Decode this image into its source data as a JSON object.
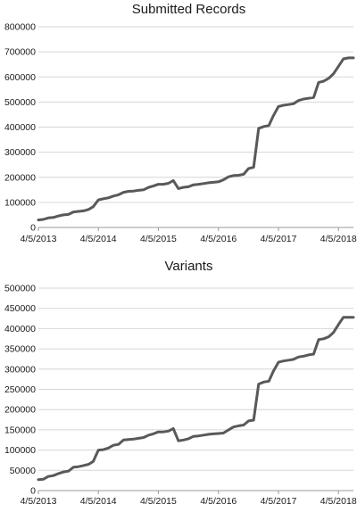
{
  "chart_data": [
    {
      "type": "line",
      "title": "Submitted Records",
      "xlabel": "",
      "ylabel": "",
      "x_ticks": [
        "4/5/2013",
        "4/5/2014",
        "4/5/2015",
        "4/5/2016",
        "4/5/2017",
        "4/5/2018"
      ],
      "x_range": [
        "2013-04-05",
        "2018-07-05"
      ],
      "ylim": [
        0,
        800000
      ],
      "y_ticks": [
        0,
        100000,
        200000,
        300000,
        400000,
        500000,
        600000,
        700000,
        800000
      ],
      "grid": "horizontal",
      "line_color": "#595959",
      "series": [
        {
          "x": [
            "2013-04-05",
            "2013-05-05",
            "2013-06-05",
            "2013-07-05",
            "2013-08-05",
            "2013-09-05",
            "2013-10-05",
            "2013-11-05",
            "2013-12-05",
            "2014-01-05",
            "2014-02-05",
            "2014-03-05",
            "2014-04-05",
            "2014-05-05",
            "2014-06-05",
            "2014-07-05",
            "2014-08-05",
            "2014-09-05",
            "2014-10-05",
            "2014-11-05",
            "2014-12-05",
            "2015-01-05",
            "2015-02-05",
            "2015-03-05",
            "2015-04-05",
            "2015-05-05",
            "2015-06-05",
            "2015-07-05",
            "2015-08-05",
            "2015-09-05",
            "2015-10-05",
            "2015-11-05",
            "2015-12-05",
            "2016-01-05",
            "2016-02-05",
            "2016-03-05",
            "2016-04-05",
            "2016-05-05",
            "2016-06-05",
            "2016-07-05",
            "2016-08-05",
            "2016-09-05",
            "2016-10-05",
            "2016-11-05",
            "2016-12-05",
            "2017-01-05",
            "2017-02-05",
            "2017-03-05",
            "2017-04-05",
            "2017-05-05",
            "2017-06-05",
            "2017-07-05",
            "2017-08-05",
            "2017-09-05",
            "2017-10-05",
            "2017-11-05",
            "2017-12-05",
            "2018-01-05",
            "2018-02-05",
            "2018-03-05",
            "2018-04-05",
            "2018-05-05",
            "2018-06-05",
            "2018-07-05"
          ],
          "values": [
            30000,
            32000,
            38000,
            40000,
            46000,
            50000,
            52000,
            62000,
            64000,
            66000,
            72000,
            83000,
            110000,
            114000,
            118000,
            125000,
            130000,
            140000,
            144000,
            145000,
            148000,
            150000,
            160000,
            165000,
            172000,
            172000,
            176000,
            187000,
            155000,
            160000,
            162000,
            170000,
            172000,
            175000,
            178000,
            180000,
            182000,
            190000,
            202000,
            207000,
            208000,
            212000,
            235000,
            240000,
            395000,
            402000,
            406000,
            445000,
            482000,
            487000,
            490000,
            493000,
            506000,
            512000,
            515000,
            518000,
            578000,
            583000,
            595000,
            612000,
            642000,
            672000,
            676000,
            676000
          ]
        }
      ]
    },
    {
      "type": "line",
      "title": "Variants",
      "xlabel": "",
      "ylabel": "",
      "x_ticks": [
        "4/5/2013",
        "4/5/2014",
        "4/5/2015",
        "4/5/2016",
        "4/5/2017",
        "4/5/2018"
      ],
      "x_range": [
        "2013-04-05",
        "2018-07-05"
      ],
      "ylim": [
        0,
        500000
      ],
      "y_ticks": [
        0,
        50000,
        100000,
        150000,
        200000,
        250000,
        300000,
        350000,
        400000,
        450000,
        500000
      ],
      "grid": "horizontal",
      "line_color": "#595959",
      "series": [
        {
          "x": [
            "2013-04-05",
            "2013-05-05",
            "2013-06-05",
            "2013-07-05",
            "2013-08-05",
            "2013-09-05",
            "2013-10-05",
            "2013-11-05",
            "2013-12-05",
            "2014-01-05",
            "2014-02-05",
            "2014-03-05",
            "2014-04-05",
            "2014-05-05",
            "2014-06-05",
            "2014-07-05",
            "2014-08-05",
            "2014-09-05",
            "2014-10-05",
            "2014-11-05",
            "2014-12-05",
            "2015-01-05",
            "2015-02-05",
            "2015-03-05",
            "2015-04-05",
            "2015-05-05",
            "2015-06-05",
            "2015-07-05",
            "2015-08-05",
            "2015-09-05",
            "2015-10-05",
            "2015-11-05",
            "2015-12-05",
            "2016-01-05",
            "2016-02-05",
            "2016-03-05",
            "2016-04-05",
            "2016-05-05",
            "2016-06-05",
            "2016-07-05",
            "2016-08-05",
            "2016-09-05",
            "2016-10-05",
            "2016-11-05",
            "2016-12-05",
            "2017-01-05",
            "2017-02-05",
            "2017-03-05",
            "2017-04-05",
            "2017-05-05",
            "2017-06-05",
            "2017-07-05",
            "2017-08-05",
            "2017-09-05",
            "2017-10-05",
            "2017-11-05",
            "2017-12-05",
            "2018-01-05",
            "2018-02-05",
            "2018-03-05",
            "2018-04-05",
            "2018-05-05",
            "2018-06-05",
            "2018-07-05"
          ],
          "values": [
            27000,
            28000,
            35000,
            37000,
            42000,
            46000,
            48000,
            58000,
            59000,
            62000,
            65000,
            72000,
            100000,
            101000,
            105000,
            112000,
            114000,
            125000,
            126000,
            127000,
            129000,
            131000,
            137000,
            140000,
            145000,
            145000,
            147000,
            153000,
            123000,
            125000,
            128000,
            134000,
            135000,
            137000,
            139000,
            140000,
            141000,
            142000,
            150000,
            157000,
            160000,
            162000,
            172000,
            174000,
            263000,
            268000,
            270000,
            295000,
            317000,
            320000,
            322000,
            324000,
            330000,
            332000,
            335000,
            337000,
            373000,
            375000,
            380000,
            390000,
            410000,
            428000,
            428000,
            428000
          ]
        }
      ]
    }
  ]
}
